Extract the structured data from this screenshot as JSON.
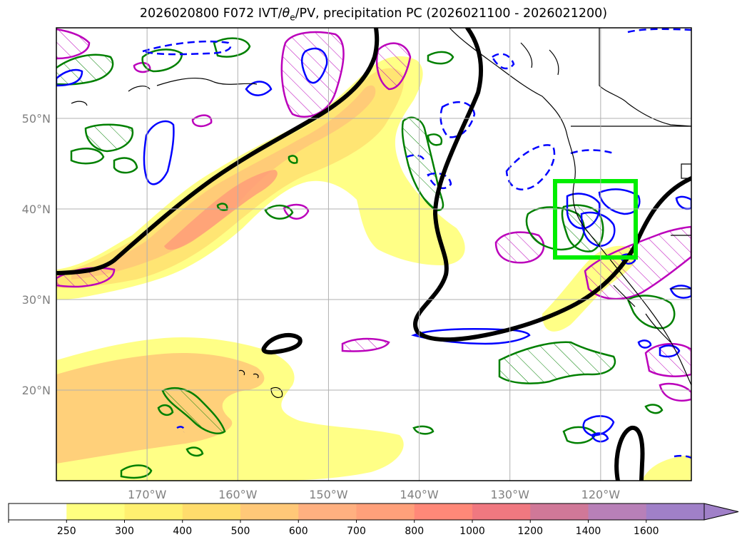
{
  "title": {
    "run": "2026020800",
    "forecast": "F072",
    "fields_prefix": "IVT/",
    "theta_symbol": "θ",
    "theta_sub": "e",
    "fields_suffix": "/PV, precipitation PC",
    "period": "(2026021100 - 2026021200)"
  },
  "map": {
    "lon_range": [
      -180,
      -110
    ],
    "lat_range": [
      10,
      60
    ],
    "lat_ticks": [
      20,
      30,
      40,
      50
    ],
    "lon_ticks": [
      -170,
      -160,
      -150,
      -140,
      -130,
      -120
    ],
    "lat_labels": [
      "20°N",
      "30°N",
      "40°N",
      "50°N"
    ],
    "lon_labels": [
      "170°W",
      "160°W",
      "150°W",
      "140°W",
      "130°W",
      "120°W"
    ],
    "target_box": {
      "lon": [
        -125,
        -116
      ],
      "lat": [
        34.5,
        43
      ],
      "color": "#00ee00"
    },
    "colors": {
      "trough_line": "#000000",
      "theta_contour_solid": "#0000ff",
      "pv_contour": "#bb00bb",
      "precip_contour": "#008000",
      "grid": "#b0b0b0"
    }
  },
  "colorbar": {
    "labels": [
      "250",
      "300",
      "400",
      "500",
      "600",
      "700",
      "800",
      "1000",
      "1200",
      "1400",
      "1600"
    ],
    "colors": [
      "#ffffff",
      "#ffff80",
      "#fff070",
      "#ffdc6c",
      "#ffc878",
      "#ffb080",
      "#ffa07a",
      "#ff8878",
      "#f07880",
      "#d07898",
      "#b880b8",
      "#a080c8"
    ]
  }
}
